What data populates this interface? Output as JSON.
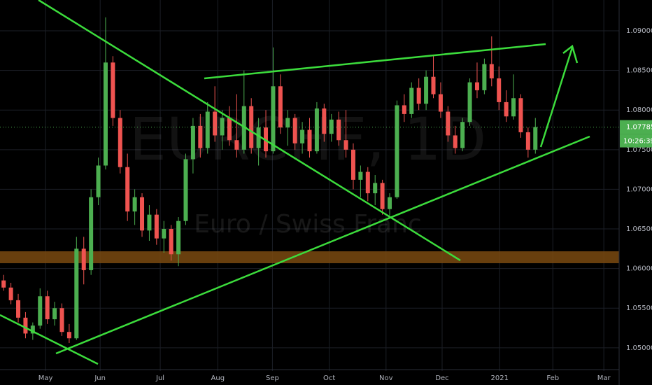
{
  "chart_data": {
    "type": "candlestick",
    "watermark_title": "EURCHF, 1D",
    "watermark_subtitle": "Euro / Swiss Franc",
    "last_price": {
      "value": 1.07785,
      "label": "1.07785"
    },
    "countdown": "10:26:39",
    "up_color": "#4caf50",
    "down_color": "#ef5350",
    "ylim": [
      1.04707,
      1.09389
    ],
    "yticks": [
      {
        "value": 1.05,
        "label": "1.05000"
      },
      {
        "value": 1.055,
        "label": "1.05500"
      },
      {
        "value": 1.06,
        "label": "1.06000"
      },
      {
        "value": 1.065,
        "label": "1.06500"
      },
      {
        "value": 1.07,
        "label": "1.07000"
      },
      {
        "value": 1.075,
        "label": "1.07500"
      },
      {
        "value": 1.08,
        "label": "1.08000"
      },
      {
        "value": 1.085,
        "label": "1.08500"
      },
      {
        "value": 1.09,
        "label": "1.09000"
      }
    ],
    "xlim": [
      0,
      85
    ],
    "xticks": [
      {
        "value": 6.25,
        "label": "May"
      },
      {
        "value": 13.75,
        "label": "Jun"
      },
      {
        "value": 22,
        "label": "Jul"
      },
      {
        "value": 29.9,
        "label": "Aug"
      },
      {
        "value": 37.4,
        "label": "Sep"
      },
      {
        "value": 45.2,
        "label": "Oct"
      },
      {
        "value": 53,
        "label": "Nov"
      },
      {
        "value": 60.7,
        "label": "Dec"
      },
      {
        "value": 68.6,
        "label": "2021"
      },
      {
        "value": 75.9,
        "label": "Feb"
      },
      {
        "value": 82.9,
        "label": "Mar"
      }
    ],
    "grid": true,
    "values": [
      [
        1.0585,
        1.0592,
        1.0572,
        1.0576
      ],
      [
        1.0576,
        1.0582,
        1.0555,
        1.056
      ],
      [
        1.056,
        1.0568,
        1.0532,
        1.0538
      ],
      [
        1.0538,
        1.0545,
        1.0512,
        1.0518
      ],
      [
        1.0518,
        1.0532,
        1.051,
        1.0528
      ],
      [
        1.0528,
        1.0575,
        1.0524,
        1.0565
      ],
      [
        1.0565,
        1.0572,
        1.053,
        1.0536
      ],
      [
        1.0536,
        1.0558,
        1.0528,
        1.055
      ],
      [
        1.055,
        1.0556,
        1.0515,
        1.052
      ],
      [
        1.052,
        1.053,
        1.0506,
        1.0512
      ],
      [
        1.0512,
        1.064,
        1.051,
        1.0625
      ],
      [
        1.0625,
        1.064,
        1.058,
        1.0598
      ],
      [
        1.0598,
        1.07,
        1.0592,
        1.069
      ],
      [
        1.069,
        1.074,
        1.068,
        1.073
      ],
      [
        1.073,
        1.0917,
        1.0725,
        1.086
      ],
      [
        1.086,
        1.0868,
        1.078,
        1.079
      ],
      [
        1.079,
        1.08,
        1.072,
        1.0728
      ],
      [
        1.0728,
        1.0745,
        1.066,
        1.0672
      ],
      [
        1.0672,
        1.07,
        1.0655,
        1.069
      ],
      [
        1.069,
        1.0695,
        1.064,
        1.0648
      ],
      [
        1.0648,
        1.068,
        1.0635,
        1.0668
      ],
      [
        1.0668,
        1.0675,
        1.063,
        1.0638
      ],
      [
        1.0638,
        1.066,
        1.062,
        1.065
      ],
      [
        1.065,
        1.0655,
        1.061,
        1.0618
      ],
      [
        1.0618,
        1.0665,
        1.0603,
        1.066
      ],
      [
        1.066,
        1.0745,
        1.0655,
        1.0738
      ],
      [
        1.0738,
        1.079,
        1.072,
        1.078
      ],
      [
        1.078,
        1.0795,
        1.074,
        1.0752
      ],
      [
        1.0752,
        1.081,
        1.0745,
        1.0798
      ],
      [
        1.0798,
        1.083,
        1.076,
        1.0768
      ],
      [
        1.0768,
        1.08,
        1.075,
        1.079
      ],
      [
        1.079,
        1.0805,
        1.0755,
        1.0762
      ],
      [
        1.0762,
        1.082,
        1.074,
        1.075
      ],
      [
        1.075,
        1.085,
        1.0745,
        1.0805
      ],
      [
        1.0805,
        1.0815,
        1.0745,
        1.0752
      ],
      [
        1.0752,
        1.079,
        1.073,
        1.0778
      ],
      [
        1.0778,
        1.08,
        1.074,
        1.0748
      ],
      [
        1.0748,
        1.0879,
        1.0745,
        1.083
      ],
      [
        1.083,
        1.0845,
        1.077,
        1.0778
      ],
      [
        1.0778,
        1.08,
        1.0755,
        1.079
      ],
      [
        1.079,
        1.0795,
        1.075,
        1.0758
      ],
      [
        1.0758,
        1.0785,
        1.0745,
        1.0775
      ],
      [
        1.0775,
        1.079,
        1.074,
        1.0748
      ],
      [
        1.0748,
        1.081,
        1.0745,
        1.0802
      ],
      [
        1.0802,
        1.0808,
        1.076,
        1.077
      ],
      [
        1.077,
        1.0795,
        1.076,
        1.0788
      ],
      [
        1.0788,
        1.0798,
        1.0755,
        1.0762
      ],
      [
        1.0762,
        1.08,
        1.074,
        1.075
      ],
      [
        1.075,
        1.0758,
        1.07,
        1.0712
      ],
      [
        1.0712,
        1.073,
        1.069,
        1.0722
      ],
      [
        1.0722,
        1.0728,
        1.0685,
        1.0695
      ],
      [
        1.0695,
        1.0718,
        1.068,
        1.0708
      ],
      [
        1.0708,
        1.0712,
        1.0668,
        1.0675
      ],
      [
        1.0675,
        1.0695,
        1.0667,
        1.069
      ],
      [
        1.069,
        1.0812,
        1.0688,
        1.0806
      ],
      [
        1.0806,
        1.082,
        1.0785,
        1.0795
      ],
      [
        1.0795,
        1.0835,
        1.079,
        1.0828
      ],
      [
        1.0828,
        1.084,
        1.08,
        1.0808
      ],
      [
        1.0808,
        1.085,
        1.08,
        1.0842
      ],
      [
        1.0842,
        1.0868,
        1.0815,
        1.082
      ],
      [
        1.082,
        1.0835,
        1.079,
        1.0798
      ],
      [
        1.0798,
        1.0805,
        1.076,
        1.0768
      ],
      [
        1.0768,
        1.078,
        1.0745,
        1.0752
      ],
      [
        1.0752,
        1.079,
        1.0748,
        1.0785
      ],
      [
        1.0785,
        1.084,
        1.078,
        1.0835
      ],
      [
        1.0835,
        1.086,
        1.0815,
        1.0825
      ],
      [
        1.0825,
        1.0865,
        1.082,
        1.0858
      ],
      [
        1.0858,
        1.0893,
        1.083,
        1.084
      ],
      [
        1.084,
        1.0855,
        1.08,
        1.081
      ],
      [
        1.081,
        1.0825,
        1.0785,
        1.0792
      ],
      [
        1.0792,
        1.0845,
        1.0788,
        1.0815
      ],
      [
        1.0815,
        1.082,
        1.0765,
        1.0772
      ],
      [
        1.0772,
        1.0778,
        1.074,
        1.075
      ],
      [
        1.075,
        1.079,
        1.0745,
        1.07785
      ]
    ]
  }
}
